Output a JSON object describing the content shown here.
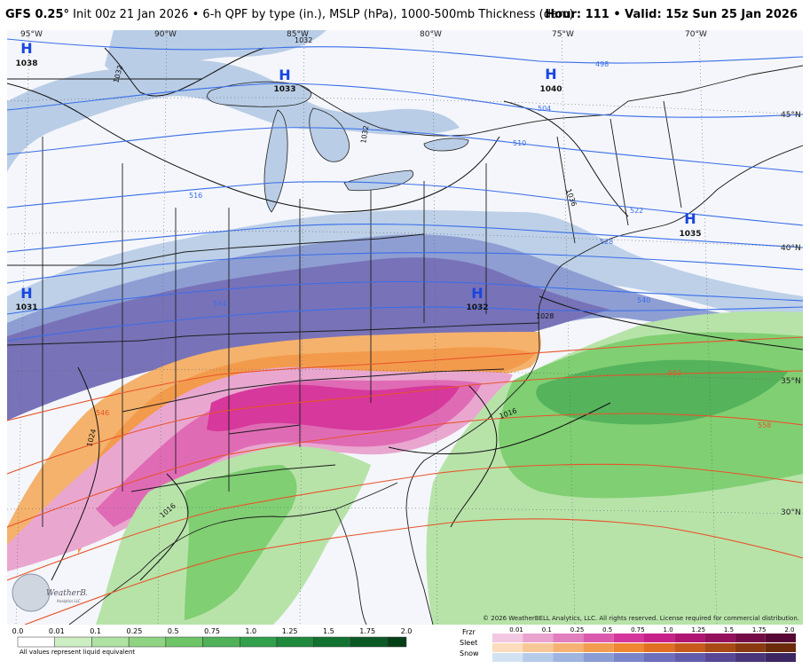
{
  "header": {
    "model": "GFS 0.25",
    "degree": "°",
    "subtitle": "Init 00z 21 Jan 2026 • 6-h QPF by type (in.), MSLP (hPa), 1000-500mb Thickness (dam)",
    "hour_label": "Hour:",
    "hour_value": "111",
    "valid_label": "• Valid:",
    "valid_value": "15z Sun 25 Jan 2026"
  },
  "map": {
    "longitudes": [
      "95°W",
      "90°W",
      "85°W",
      "80°W",
      "75°W",
      "70°W"
    ],
    "latitudes": [
      "45°N",
      "40°N",
      "35°N",
      "30°N"
    ],
    "pressure_centers": [
      {
        "letter": "H",
        "value": "1038"
      },
      {
        "letter": "H",
        "value": "1033"
      },
      {
        "letter": "H",
        "value": "1040"
      },
      {
        "letter": "H",
        "value": "1035"
      },
      {
        "letter": "H",
        "value": "1031"
      },
      {
        "letter": "H",
        "value": "1032"
      }
    ],
    "isobar_labels": [
      "1032",
      "1032",
      "1032",
      "1036",
      "1024",
      "1016",
      "1016",
      "1028"
    ],
    "thickness_labels": [
      "498",
      "504",
      "510",
      "516",
      "522",
      "528",
      "534",
      "540",
      "546",
      "552",
      "558"
    ],
    "colors": {
      "snow_light": "#b8cde6",
      "snow_mid": "#8f9fd4",
      "snow_heavy": "#7571b8",
      "sleet_light": "#f4b36c",
      "sleet_mid": "#f29a4a",
      "frzr_light": "#e9a8d1",
      "frzr_mid": "#e06ab5",
      "frzr_heavy": "#d6379a",
      "rain_light": "#b6e3a8",
      "rain_mid": "#7fcf72",
      "rain_heavy": "#4fb158",
      "thickness_cold": "#3a6ee8",
      "thickness_warm": "#e8542a",
      "land": "#f3f6fb"
    }
  },
  "legend": {
    "rain_ticks": [
      "0.0",
      "0.01",
      "0.1",
      "0.25",
      "0.5",
      "0.75",
      "1.0",
      "1.25",
      "1.5",
      "1.75",
      "2.0"
    ],
    "rain_colors": [
      "#ffffff",
      "#cdeec3",
      "#b0e2a3",
      "#8fd483",
      "#6ec567",
      "#4fb158",
      "#33a04c",
      "#1f8a3c",
      "#127330",
      "#0b5a25",
      "#053f18"
    ],
    "note": "All values represent liquid equivalent",
    "type_labels": [
      "Frzr",
      "Sleet",
      "Snow"
    ],
    "type_ticks": [
      "0.01",
      "0.1",
      "0.25",
      "0.5",
      "0.75",
      "1.0",
      "1.25",
      "1.5",
      "1.75",
      "2.0"
    ],
    "frzr_colors": [
      "#f2c7e1",
      "#eaa3cf",
      "#e27fbe",
      "#da5aad",
      "#d4369c",
      "#c7228a",
      "#b01572",
      "#93105c",
      "#740b47",
      "#560733"
    ],
    "sleet_colors": [
      "#fbdcbc",
      "#f8c797",
      "#f5b272",
      "#f29c4f",
      "#ee8632",
      "#e06f23",
      "#c85b1c",
      "#a94915",
      "#8a3910",
      "#6b2b0b"
    ],
    "snow_colors": [
      "#d3e2f3",
      "#b6cbe8",
      "#9fb4de",
      "#8b9cd5",
      "#7a85c9",
      "#6d6fbc",
      "#625aaa",
      "#574794",
      "#4a367b",
      "#3c2762"
    ],
    "copyright": "© 2026 WeatherBELL Analytics, LLC. All rights reserved. License required for commercial distribution.",
    "logo_text": "WeatherBELL",
    "logo_subtext": "Analytics LLC"
  }
}
